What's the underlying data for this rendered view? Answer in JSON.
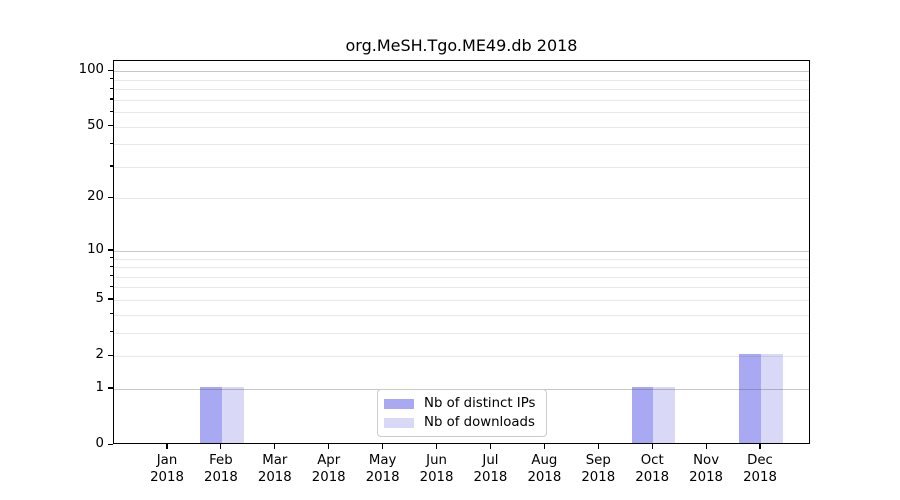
{
  "title": "org.MeSH.Tgo.ME49.db 2018",
  "chart_data": {
    "type": "bar",
    "title": "org.MeSH.Tgo.ME49.db 2018",
    "categories": [
      "Jan 2018",
      "Feb 2018",
      "Mar 2018",
      "Apr 2018",
      "May 2018",
      "Jun 2018",
      "Jul 2018",
      "Aug 2018",
      "Sep 2018",
      "Oct 2018",
      "Nov 2018",
      "Dec 2018"
    ],
    "series": [
      {
        "name": "Nb of distinct IPs",
        "color": "#a9a9f3",
        "values": [
          0,
          1,
          0,
          0,
          0,
          0,
          0,
          0,
          0,
          1,
          0,
          2
        ]
      },
      {
        "name": "Nb of downloads",
        "color": "#d9d9f7",
        "values": [
          0,
          1,
          0,
          0,
          0,
          0,
          0,
          0,
          0,
          1,
          0,
          2
        ]
      }
    ],
    "yscale": "log1p",
    "ylim": [
      0,
      113.7
    ],
    "y_tick_labels": [
      0,
      1,
      2,
      5,
      10,
      20,
      50,
      100
    ],
    "y_major_gridlines": [
      1,
      10,
      100
    ],
    "y_minor_gridlines": [
      2,
      3,
      4,
      5,
      6,
      7,
      8,
      9,
      20,
      30,
      40,
      50,
      60,
      70,
      80,
      90
    ],
    "grid": "horizontal, drawn above bars",
    "legend_position": "lower center",
    "xlabel": "",
    "ylabel": ""
  },
  "legend": {
    "entries": [
      "Nb of distinct IPs",
      "Nb of downloads"
    ]
  },
  "colors": {
    "distinct_ips": "#a9a9f3",
    "downloads": "#d9d9f7",
    "spine": "#000000",
    "major_grid": "#c8c8c8",
    "minor_grid": "#eaeaea",
    "background": "#ffffff"
  }
}
